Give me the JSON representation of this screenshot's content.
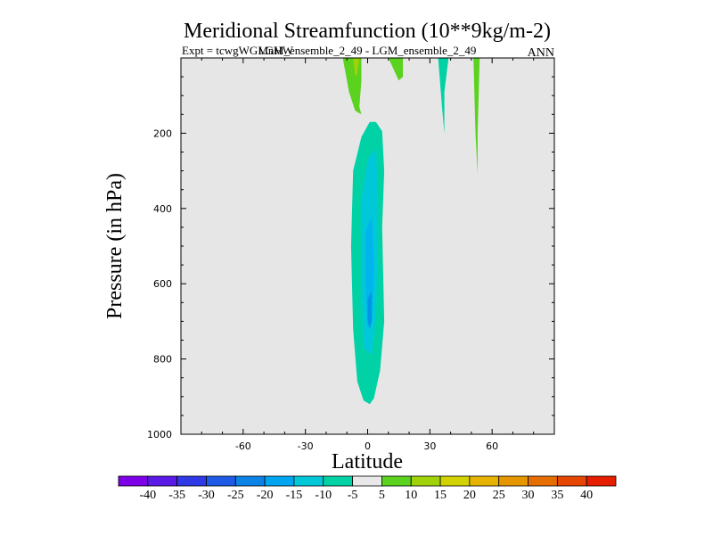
{
  "chart_data": {
    "type": "filled-contour",
    "title": "Meridional Streamfunction (10**9kg/m-2)",
    "subtitle_left": "Expt = tcwgWGMnHW",
    "subtitle_center": "LGM_ensemble_2_49 - LGM_ensemble_2_49",
    "subtitle_right": "ANN",
    "xlabel": "Latitude",
    "ylabel": "Pressure (in hPa)",
    "xlim": [
      -90,
      90
    ],
    "ylim": [
      1000,
      0
    ],
    "x_ticks": [
      -60,
      -30,
      0,
      30,
      60
    ],
    "y_ticks": [
      200,
      400,
      600,
      800,
      1000
    ],
    "background": "#e6e6e6",
    "regions": [
      {
        "name": "negative-cell-outer",
        "value": -10,
        "color": "#00d2a6",
        "points": [
          [
            4,
            170
          ],
          [
            7,
            195
          ],
          [
            8,
            300
          ],
          [
            7,
            450
          ],
          [
            8,
            700
          ],
          [
            6,
            830
          ],
          [
            3,
            905
          ],
          [
            1,
            920
          ],
          [
            -2,
            910
          ],
          [
            -5,
            860
          ],
          [
            -7,
            720
          ],
          [
            -8,
            500
          ],
          [
            -7,
            300
          ],
          [
            -3,
            210
          ],
          [
            1,
            170
          ]
        ]
      },
      {
        "name": "negative-cell-mid",
        "value": -15,
        "color": "#00c8d8",
        "points": [
          [
            4,
            240
          ],
          [
            5,
            350
          ],
          [
            5,
            500
          ],
          [
            4,
            680
          ],
          [
            2,
            790
          ],
          [
            -2,
            770
          ],
          [
            -3,
            600
          ],
          [
            -3,
            380
          ],
          [
            0,
            270
          ]
        ]
      },
      {
        "name": "negative-cell-inner",
        "value": -20,
        "color": "#00b4ee",
        "points": [
          [
            2,
            420
          ],
          [
            3,
            560
          ],
          [
            2,
            700
          ],
          [
            0,
            720
          ],
          [
            -1,
            600
          ],
          [
            -1,
            460
          ]
        ]
      },
      {
        "name": "negative-cell-core",
        "value": -25,
        "color": "#0096e6",
        "points": [
          [
            2,
            620
          ],
          [
            2,
            700
          ],
          [
            1,
            720
          ],
          [
            0,
            700
          ],
          [
            0,
            640
          ]
        ]
      },
      {
        "name": "positive-upper-left",
        "value": 10,
        "color": "#5ad21e",
        "points": [
          [
            -12,
            0
          ],
          [
            -3,
            0
          ],
          [
            -3,
            60
          ],
          [
            -4,
            130
          ],
          [
            -3,
            150
          ],
          [
            -6,
            140
          ],
          [
            -9,
            90
          ]
        ]
      },
      {
        "name": "positive-upper-left-core",
        "value": 15,
        "color": "#a0d20a",
        "points": [
          [
            -7,
            0
          ],
          [
            -4,
            0
          ],
          [
            -5,
            40
          ],
          [
            -6,
            50
          ]
        ]
      },
      {
        "name": "positive-upper-mid",
        "value": 10,
        "color": "#5ad21e",
        "points": [
          [
            10,
            0
          ],
          [
            17,
            0
          ],
          [
            17,
            50
          ],
          [
            15,
            60
          ]
        ]
      },
      {
        "name": "negative-upper-right",
        "value": -10,
        "color": "#00d2a6",
        "points": [
          [
            34,
            0
          ],
          [
            39,
            0
          ],
          [
            37,
            90
          ],
          [
            37,
            200
          ],
          [
            36,
            140
          ]
        ]
      },
      {
        "name": "positive-upper-right",
        "value": 10,
        "color": "#5ad21e",
        "points": [
          [
            51,
            0
          ],
          [
            54,
            0
          ],
          [
            53,
            200
          ],
          [
            53,
            310
          ],
          [
            52,
            200
          ]
        ]
      }
    ],
    "colorbar": {
      "labels": [
        "-40",
        "-35",
        "-30",
        "-25",
        "-20",
        "-15",
        "-10",
        "-5",
        "5",
        "10",
        "15",
        "20",
        "25",
        "30",
        "35",
        "40"
      ],
      "colors": [
        "#7d00e6",
        "#5a19e6",
        "#2e3ae6",
        "#1e5ae6",
        "#0a82e6",
        "#00a5f0",
        "#00c8d8",
        "#00d2a6",
        "#e8e8e8",
        "#5ad21e",
        "#a0d20a",
        "#d2d200",
        "#e6b400",
        "#e69600",
        "#e66e00",
        "#e64600",
        "#e61e00"
      ]
    }
  }
}
